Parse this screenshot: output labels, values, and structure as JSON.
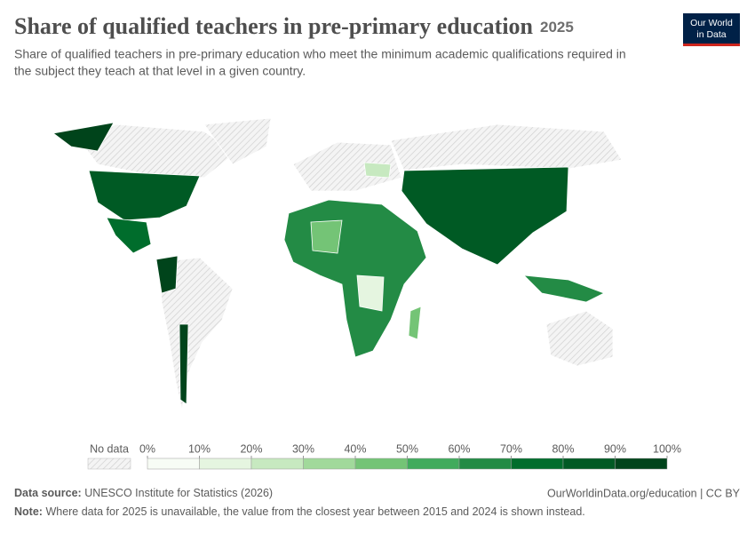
{
  "header": {
    "title": "Share of qualified teachers in pre-primary education",
    "year": "2025",
    "subtitle_lines": [
      "Share of qualified teachers in pre-primary education who meet the minimum academic qualifications required in",
      "the subject they teach at that level in a given country."
    ],
    "logo": [
      "Our World",
      "in Data"
    ]
  },
  "legend": {
    "no_data": "No data",
    "ticks": [
      {
        "value": 0,
        "label": "0%"
      },
      {
        "value": 10,
        "label": "10%"
      },
      {
        "value": 20,
        "label": "20%"
      },
      {
        "value": 30,
        "label": "30%"
      },
      {
        "value": 40,
        "label": "40%"
      },
      {
        "value": 50,
        "label": "50%"
      },
      {
        "value": 60,
        "label": "60%"
      },
      {
        "value": 70,
        "label": "70%"
      },
      {
        "value": 80,
        "label": "80%"
      },
      {
        "value": 90,
        "label": "90%"
      },
      {
        "value": 100,
        "label": "100%"
      }
    ],
    "colors": [
      "#f7fcf5",
      "#e5f5e0",
      "#c7e9c0",
      "#a1d99b",
      "#74c476",
      "#41ab5d",
      "#238b45",
      "#006d2c",
      "#005a24",
      "#00441b"
    ]
  },
  "footer": {
    "source_label": "Data source:",
    "source": "UNESCO Institute for Statistics (2026)",
    "url": "OurWorldinData.org/education | CC BY",
    "note_label": "Note:",
    "note": "Where data for 2025 is unavailable, the value from the closest year between 2015 and 2024 is shown instead."
  }
}
